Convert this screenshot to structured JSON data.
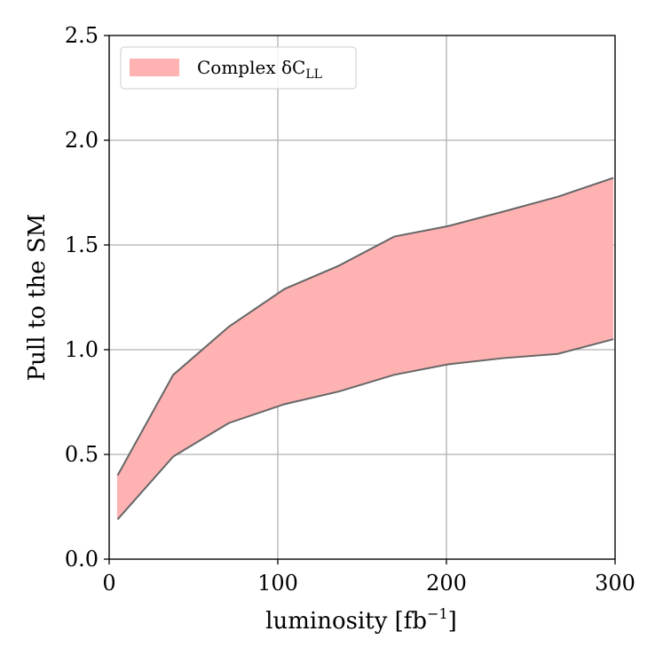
{
  "chart_data": {
    "type": "area",
    "xlabel": "luminosity [fb",
    "xlabel_sup": "−1",
    "xlabel_suffix": "]",
    "ylabel": "Pull to the SM",
    "xlim": [
      0,
      300
    ],
    "ylim": [
      0,
      2.5
    ],
    "xticks": [
      0,
      100,
      200,
      300
    ],
    "xtick_labels": [
      "0",
      "100",
      "200",
      "300"
    ],
    "yticks": [
      0.0,
      0.5,
      1.0,
      1.5,
      2.0,
      2.5
    ],
    "ytick_labels": [
      "0.0",
      "0.5",
      "1.0",
      "1.5",
      "2.0",
      "2.5"
    ],
    "grid": true,
    "legend_position": "top-left",
    "series": [
      {
        "name": "Complex δC",
        "name_sub": "LL",
        "style": "band",
        "color": "#ffb2b2",
        "edge_color": "#666666",
        "x": [
          5,
          38,
          71,
          104,
          136,
          169,
          201,
          234,
          266,
          299
        ],
        "upper": [
          0.4,
          0.88,
          1.11,
          1.29,
          1.4,
          1.54,
          1.59,
          1.66,
          1.73,
          1.82
        ],
        "lower": [
          0.19,
          0.49,
          0.65,
          0.74,
          0.8,
          0.88,
          0.93,
          0.96,
          0.98,
          1.05
        ]
      }
    ]
  }
}
